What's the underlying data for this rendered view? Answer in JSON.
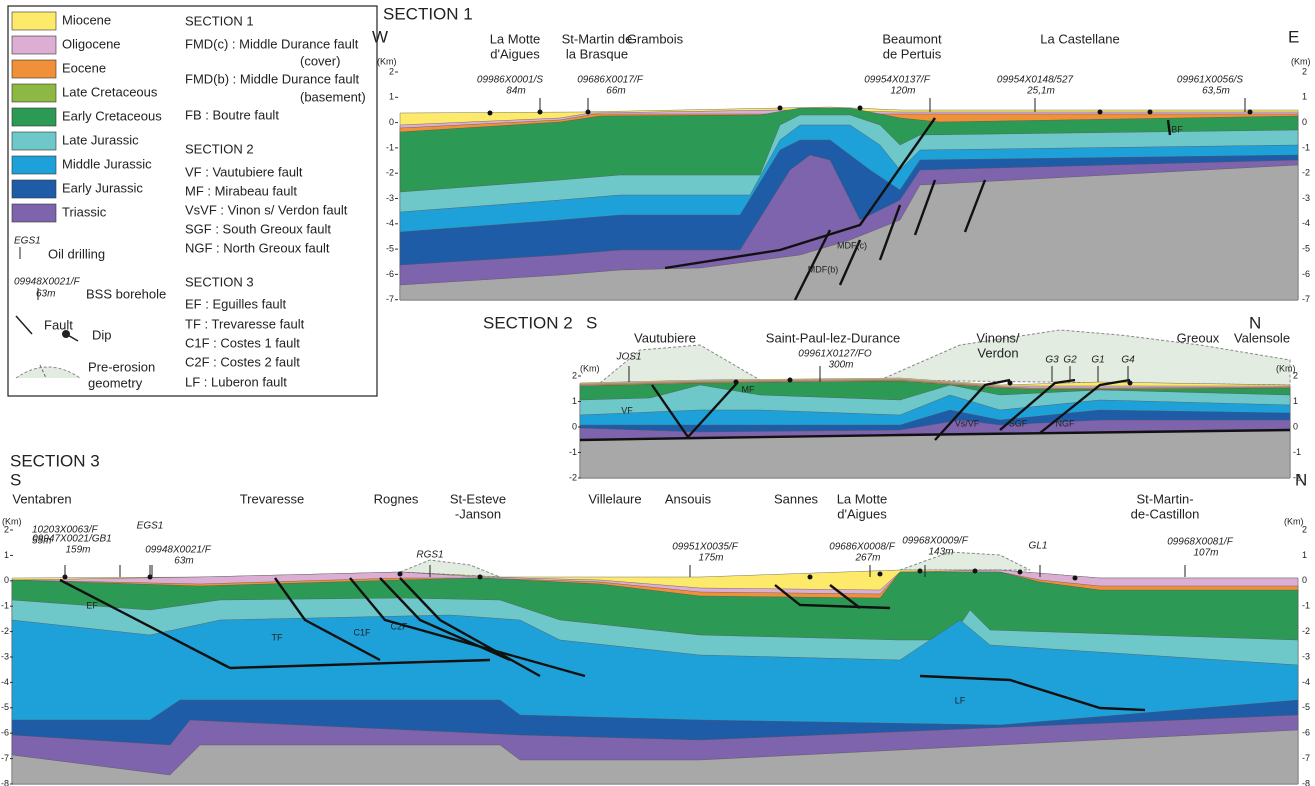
{
  "legend": {
    "units": [
      {
        "label": "Miocene",
        "color": "#fde96a"
      },
      {
        "label": "Oligocene",
        "color": "#dcaed3"
      },
      {
        "label": "Eocene",
        "color": "#f0913a"
      },
      {
        "label": "Late Cretaceous",
        "color": "#8db843"
      },
      {
        "label": "Early Cretaceous",
        "color": "#2c9a54"
      },
      {
        "label": "Late Jurassic",
        "color": "#6ec7c9"
      },
      {
        "label": "Middle Jurassic",
        "color": "#1ea1d9"
      },
      {
        "label": "Early Jurassic",
        "color": "#1f5ca8"
      },
      {
        "label": "Triassic",
        "color": "#7e63ad"
      }
    ],
    "symbols": {
      "oil_drilling": {
        "id": "EGS1",
        "label": "Oil drilling"
      },
      "bss": {
        "id": "09948X0021/F",
        "depth": "63m",
        "label": "BSS borehole"
      },
      "fault": "Fault",
      "dip": "Dip",
      "pre_erosion": [
        "Pre-erosion",
        "geometry"
      ]
    },
    "faults": [
      {
        "title": "SECTION 1",
        "lines": [
          "FMD(c) : Middle Durance fault",
          "(cover)",
          "FMD(b) : Middle Durance fault",
          "(basement)",
          "FB : Boutre fault"
        ]
      },
      {
        "title": "SECTION 2",
        "lines": [
          "VF : Vautubiere fault",
          "MF : Mirabeau fault",
          "VsVF : Vinon s/ Verdon fault",
          "SGF : South Greoux fault",
          "NGF : North Greoux fault"
        ]
      },
      {
        "title": "SECTION 3",
        "lines": [
          "EF : Eguilles fault",
          "TF : Trevaresse fault",
          "C1F : Costes 1 fault",
          "C2F : Costes 2 fault",
          "LF : Luberon fault"
        ]
      }
    ]
  },
  "sections": [
    {
      "title": "SECTION 1",
      "left": "W",
      "right": "E",
      "unit": "(Km)",
      "ticks": [
        "2",
        "1",
        "0",
        "-1",
        "-2",
        "-3",
        "-4",
        "-5",
        "-6",
        "-7"
      ],
      "places": [
        [
          "La Motte",
          "d'Aigues"
        ],
        [
          "St-Martin de",
          "la Brasque"
        ],
        [
          "Grambois"
        ],
        [
          "Beaumont",
          "de Pertuis"
        ],
        [
          "La Castellane"
        ]
      ],
      "boreholes": [
        {
          "id": "09986X0001/S",
          "depth": "84m"
        },
        {
          "id": "09686X0017/F",
          "depth": "66m"
        },
        {
          "id": "09954X0137/F",
          "depth": "120m"
        },
        {
          "id": "09954X0148/527",
          "depth": "25,1m"
        },
        {
          "id": "09961X0056/S",
          "depth": "63,5m"
        }
      ],
      "faults": [
        "MDF(c)",
        "MDF(b)",
        "BF"
      ]
    },
    {
      "title": "SECTION 2",
      "left": "S",
      "right": "N",
      "unit": "(Km)",
      "ticks": [
        "2",
        "1",
        "0",
        "-1",
        "-2"
      ],
      "places": [
        [
          "Vautubiere"
        ],
        [
          "Saint-Paul-lez-Durance"
        ],
        [
          "Vinons/",
          "Verdon"
        ],
        [
          "Greoux"
        ],
        [
          "Valensole"
        ]
      ],
      "boreholes": [
        {
          "id": "JOS1"
        },
        {
          "id": "09961X0127/FO",
          "depth": "300m"
        },
        {
          "id": "G3"
        },
        {
          "id": "G2"
        },
        {
          "id": "G1"
        },
        {
          "id": "G4"
        }
      ],
      "faults": [
        "VF",
        "MF",
        "Vs/VF",
        "SGF",
        "NGF"
      ]
    },
    {
      "title": "SECTION 3",
      "left": "S",
      "right": "N",
      "unit": "(Km)",
      "ticks": [
        "2",
        "1",
        "0",
        "-1",
        "-2",
        "-3",
        "-4",
        "-5",
        "-6",
        "-7",
        "-8"
      ],
      "places": [
        [
          "Ventabren"
        ],
        [
          "Trevaresse"
        ],
        [
          "Rognes"
        ],
        [
          "St-Esteve",
          "-Janson"
        ],
        [
          "Villelaure"
        ],
        [
          "Ansouis"
        ],
        [
          "Sannes"
        ],
        [
          "La Motte",
          "d'Aigues"
        ],
        [
          "St-Martin-",
          "de-Castillon"
        ]
      ],
      "boreholes": [
        {
          "id": "10203X0063/F",
          "depth": "55m"
        },
        {
          "id": "EGS1"
        },
        {
          "id": "09947X0021/GB1",
          "depth": "159m"
        },
        {
          "id": "09948X0021/F",
          "depth": "63m"
        },
        {
          "id": "RGS1"
        },
        {
          "id": "09951X0035/F",
          "depth": "175m"
        },
        {
          "id": "09686X0008/F",
          "depth": "267m"
        },
        {
          "id": "09968X0009/F",
          "depth": "143m"
        },
        {
          "id": "GL1"
        },
        {
          "id": "09968X0081/F",
          "depth": "107m"
        }
      ],
      "faults": [
        "EF",
        "TF",
        "C1F",
        "C2F",
        "LF"
      ]
    }
  ]
}
